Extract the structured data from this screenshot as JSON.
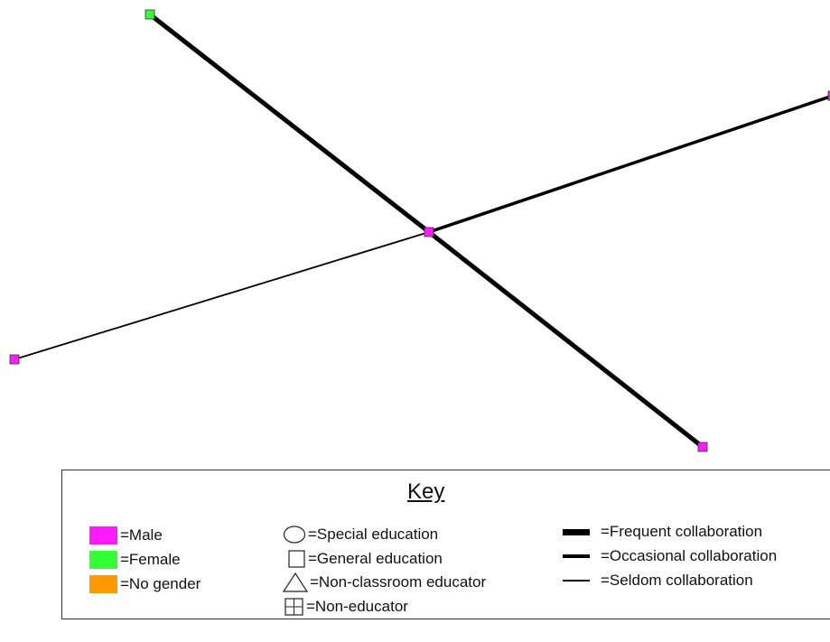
{
  "network": {
    "nodes": [
      {
        "id": "n1",
        "color": "#ff1aff",
        "shape": "square"
      },
      {
        "id": "n2",
        "color": "#33ff33",
        "shape": "square"
      },
      {
        "id": "n3",
        "color": "#ff1aff",
        "shape": "square"
      },
      {
        "id": "n4",
        "color": "#ff1aff",
        "shape": "square"
      },
      {
        "id": "n5",
        "color": "#ff1aff",
        "shape": "square"
      }
    ],
    "edges": [
      {
        "from": "n1",
        "to": "n2",
        "type": "frequent"
      },
      {
        "from": "n1",
        "to": "n3",
        "type": "occasional"
      },
      {
        "from": "n1",
        "to": "n4",
        "type": "seldom"
      },
      {
        "from": "n1",
        "to": "n5",
        "type": "frequent"
      }
    ]
  },
  "key": {
    "title": "Key",
    "gender": [
      {
        "label": "=Male",
        "color": "#ff1aff"
      },
      {
        "label": "=Female",
        "color": "#33ff33"
      },
      {
        "label": "=No gender",
        "color": "#ff9900"
      }
    ],
    "role": [
      {
        "label": "=Special education",
        "icon": "circle-icon"
      },
      {
        "label": "=General education",
        "icon": "square-icon"
      },
      {
        "label": "=Non-classroom educator",
        "icon": "triangle-icon"
      },
      {
        "label": "=Non-educator",
        "icon": "grid-square-icon"
      }
    ],
    "collaboration": [
      {
        "label": "=Frequent collaboration",
        "type": "frequent"
      },
      {
        "label": "=Occasional collaboration",
        "type": "occasional"
      },
      {
        "label": "=Seldom collaboration",
        "type": "seldom"
      }
    ]
  }
}
